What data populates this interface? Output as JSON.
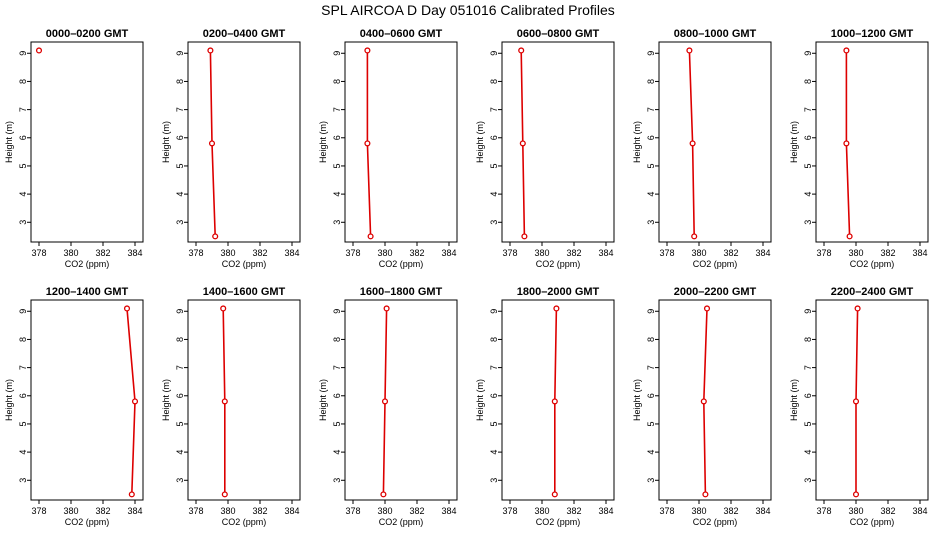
{
  "title": "SPL AIRCOA D  Day 051016  Calibrated Profiles",
  "colors": {
    "profile": "#dd0000",
    "axis": "#000000"
  },
  "chart_data": [
    {
      "type": "line",
      "title": "0000–0200 GMT",
      "xlabel": "CO2 (ppm)",
      "ylabel": "Height (m)",
      "xlim": [
        377.5,
        384.5
      ],
      "ylim": [
        2.3,
        9.4
      ],
      "xticks": [
        "378",
        "380",
        "382",
        "384"
      ],
      "yticks": [
        "3",
        "4",
        "5",
        "6",
        "7",
        "8",
        "9"
      ],
      "series": [
        {
          "x": [
            378.0
          ],
          "y": [
            9.1
          ]
        }
      ]
    },
    {
      "type": "line",
      "title": "0200–0400 GMT",
      "xlabel": "CO2 (ppm)",
      "ylabel": "Height (m)",
      "xlim": [
        377.5,
        384.5
      ],
      "ylim": [
        2.3,
        9.4
      ],
      "xticks": [
        "378",
        "380",
        "382",
        "384"
      ],
      "yticks": [
        "3",
        "4",
        "5",
        "6",
        "7",
        "8",
        "9"
      ],
      "series": [
        {
          "x": [
            378.9,
            379.0,
            379.2
          ],
          "y": [
            9.1,
            5.8,
            2.5
          ]
        }
      ]
    },
    {
      "type": "line",
      "title": "0400–0600 GMT",
      "xlabel": "CO2 (ppm)",
      "ylabel": "Height (m)",
      "xlim": [
        377.5,
        384.5
      ],
      "ylim": [
        2.3,
        9.4
      ],
      "xticks": [
        "378",
        "380",
        "382",
        "384"
      ],
      "yticks": [
        "3",
        "4",
        "5",
        "6",
        "7",
        "8",
        "9"
      ],
      "series": [
        {
          "x": [
            378.9,
            378.9,
            379.1
          ],
          "y": [
            9.1,
            5.8,
            2.5
          ]
        }
      ]
    },
    {
      "type": "line",
      "title": "0600–0800 GMT",
      "xlabel": "CO2 (ppm)",
      "ylabel": "Height (m)",
      "xlim": [
        377.5,
        384.5
      ],
      "ylim": [
        2.3,
        9.4
      ],
      "xticks": [
        "378",
        "380",
        "382",
        "384"
      ],
      "yticks": [
        "3",
        "4",
        "5",
        "6",
        "7",
        "8",
        "9"
      ],
      "series": [
        {
          "x": [
            378.7,
            378.8,
            378.9
          ],
          "y": [
            9.1,
            5.8,
            2.5
          ]
        }
      ]
    },
    {
      "type": "line",
      "title": "0800–1000 GMT",
      "xlabel": "CO2 (ppm)",
      "ylabel": "Height (m)",
      "xlim": [
        377.5,
        384.5
      ],
      "ylim": [
        2.3,
        9.4
      ],
      "xticks": [
        "378",
        "380",
        "382",
        "384"
      ],
      "yticks": [
        "3",
        "4",
        "5",
        "6",
        "7",
        "8",
        "9"
      ],
      "series": [
        {
          "x": [
            379.4,
            379.6,
            379.7
          ],
          "y": [
            9.1,
            5.8,
            2.5
          ]
        }
      ]
    },
    {
      "type": "line",
      "title": "1000–1200 GMT",
      "xlabel": "CO2 (ppm)",
      "ylabel": "Height (m)",
      "xlim": [
        377.5,
        384.5
      ],
      "ylim": [
        2.3,
        9.4
      ],
      "xticks": [
        "378",
        "380",
        "382",
        "384"
      ],
      "yticks": [
        "3",
        "4",
        "5",
        "6",
        "7",
        "8",
        "9"
      ],
      "series": [
        {
          "x": [
            379.4,
            379.4,
            379.6
          ],
          "y": [
            9.1,
            5.8,
            2.5
          ]
        }
      ]
    },
    {
      "type": "line",
      "title": "1200–1400 GMT",
      "xlabel": "CO2 (ppm)",
      "ylabel": "Height (m)",
      "xlim": [
        377.5,
        384.5
      ],
      "ylim": [
        2.3,
        9.4
      ],
      "xticks": [
        "378",
        "380",
        "382",
        "384"
      ],
      "yticks": [
        "3",
        "4",
        "5",
        "6",
        "7",
        "8",
        "9"
      ],
      "series": [
        {
          "x": [
            383.5,
            384.0,
            383.8
          ],
          "y": [
            9.1,
            5.8,
            2.5
          ]
        }
      ]
    },
    {
      "type": "line",
      "title": "1400–1600 GMT",
      "xlabel": "CO2 (ppm)",
      "ylabel": "Height (m)",
      "xlim": [
        377.5,
        384.5
      ],
      "ylim": [
        2.3,
        9.4
      ],
      "xticks": [
        "378",
        "380",
        "382",
        "384"
      ],
      "yticks": [
        "3",
        "4",
        "5",
        "6",
        "7",
        "8",
        "9"
      ],
      "series": [
        {
          "x": [
            379.7,
            379.8,
            379.8
          ],
          "y": [
            9.1,
            5.8,
            2.5
          ]
        }
      ]
    },
    {
      "type": "line",
      "title": "1600–1800 GMT",
      "xlabel": "CO2 (ppm)",
      "ylabel": "Height (m)",
      "xlim": [
        377.5,
        384.5
      ],
      "ylim": [
        2.3,
        9.4
      ],
      "xticks": [
        "378",
        "380",
        "382",
        "384"
      ],
      "yticks": [
        "3",
        "4",
        "5",
        "6",
        "7",
        "8",
        "9"
      ],
      "series": [
        {
          "x": [
            380.1,
            380.0,
            379.9
          ],
          "y": [
            9.1,
            5.8,
            2.5
          ]
        }
      ]
    },
    {
      "type": "line",
      "title": "1800–2000 GMT",
      "xlabel": "CO2 (ppm)",
      "ylabel": "Height (m)",
      "xlim": [
        377.5,
        384.5
      ],
      "ylim": [
        2.3,
        9.4
      ],
      "xticks": [
        "378",
        "380",
        "382",
        "384"
      ],
      "yticks": [
        "3",
        "4",
        "5",
        "6",
        "7",
        "8",
        "9"
      ],
      "series": [
        {
          "x": [
            380.9,
            380.8,
            380.8
          ],
          "y": [
            9.1,
            5.8,
            2.5
          ]
        }
      ]
    },
    {
      "type": "line",
      "title": "2000–2200 GMT",
      "xlabel": "CO2 (ppm)",
      "ylabel": "Height (m)",
      "xlim": [
        377.5,
        384.5
      ],
      "ylim": [
        2.3,
        9.4
      ],
      "xticks": [
        "378",
        "380",
        "382",
        "384"
      ],
      "yticks": [
        "3",
        "4",
        "5",
        "6",
        "7",
        "8",
        "9"
      ],
      "series": [
        {
          "x": [
            380.5,
            380.3,
            380.4
          ],
          "y": [
            9.1,
            5.8,
            2.5
          ]
        }
      ]
    },
    {
      "type": "line",
      "title": "2200–2400 GMT",
      "xlabel": "CO2 (ppm)",
      "ylabel": "Height (m)",
      "xlim": [
        377.5,
        384.5
      ],
      "ylim": [
        2.3,
        9.4
      ],
      "xticks": [
        "378",
        "380",
        "382",
        "384"
      ],
      "yticks": [
        "3",
        "4",
        "5",
        "6",
        "7",
        "8",
        "9"
      ],
      "series": [
        {
          "x": [
            380.1,
            380.0,
            380.0
          ],
          "y": [
            9.1,
            5.8,
            2.5
          ]
        }
      ]
    }
  ]
}
